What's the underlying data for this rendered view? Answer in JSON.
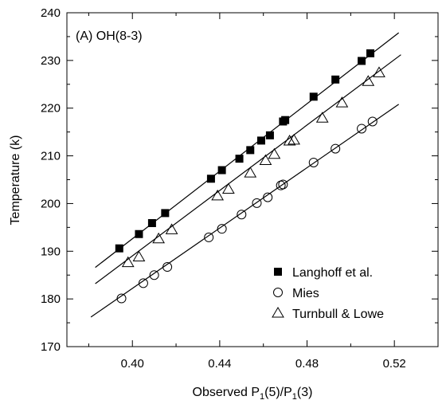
{
  "chart_data": {
    "type": "scatter",
    "annotation": "(A)  OH(8-3)",
    "xlabel_main": "Observed P",
    "xlabel_sub1": "1",
    "xlabel_mid": "(5)/P",
    "xlabel_sub2": "1",
    "xlabel_end": "(3)",
    "ylabel": "Temperature (k)",
    "xlim": [
      0.37,
      0.54
    ],
    "ylim": [
      170,
      240
    ],
    "x_ticks": [
      0.4,
      0.44,
      0.48,
      0.52
    ],
    "x_tick_labels": [
      "0.40",
      "0.44",
      "0.48",
      "0.52"
    ],
    "y_ticks": [
      170,
      180,
      190,
      200,
      210,
      220,
      230,
      240
    ],
    "y_tick_labels": [
      "170",
      "180",
      "190",
      "200",
      "210",
      "220",
      "230",
      "240"
    ],
    "grid": false,
    "legend_position": "bottom-right",
    "series": [
      {
        "name": "Langhoff et al.",
        "marker": "filled-square",
        "color": "#000000",
        "points": [
          [
            0.394,
            190.6
          ],
          [
            0.403,
            193.6
          ],
          [
            0.409,
            195.9
          ],
          [
            0.415,
            198.0
          ],
          [
            0.436,
            205.2
          ],
          [
            0.441,
            207.0
          ],
          [
            0.449,
            209.4
          ],
          [
            0.454,
            211.2
          ],
          [
            0.459,
            213.2
          ],
          [
            0.463,
            214.3
          ],
          [
            0.469,
            217.2
          ],
          [
            0.47,
            217.5
          ],
          [
            0.483,
            222.4
          ],
          [
            0.493,
            226.0
          ],
          [
            0.505,
            229.9
          ],
          [
            0.509,
            231.5
          ]
        ],
        "fit": [
          [
            0.383,
            186.6
          ],
          [
            0.522,
            235.8
          ]
        ]
      },
      {
        "name": "Mies",
        "marker": "open-circle",
        "color": "#000000",
        "points": [
          [
            0.395,
            180.1
          ],
          [
            0.405,
            183.3
          ],
          [
            0.41,
            185.0
          ],
          [
            0.416,
            186.7
          ],
          [
            0.435,
            192.9
          ],
          [
            0.441,
            194.7
          ],
          [
            0.45,
            197.7
          ],
          [
            0.457,
            200.1
          ],
          [
            0.462,
            201.3
          ],
          [
            0.468,
            203.8
          ],
          [
            0.469,
            204.0
          ],
          [
            0.483,
            208.6
          ],
          [
            0.493,
            211.5
          ],
          [
            0.505,
            215.7
          ],
          [
            0.51,
            217.2
          ]
        ],
        "fit": [
          [
            0.381,
            176.2
          ],
          [
            0.522,
            220.8
          ]
        ]
      },
      {
        "name": "Turnbull & Lowe",
        "marker": "open-triangle",
        "color": "#000000",
        "points": [
          [
            0.398,
            187.6
          ],
          [
            0.403,
            188.8
          ],
          [
            0.412,
            192.6
          ],
          [
            0.418,
            194.5
          ],
          [
            0.439,
            201.6
          ],
          [
            0.444,
            203.0
          ],
          [
            0.454,
            206.4
          ],
          [
            0.461,
            209.0
          ],
          [
            0.465,
            210.3
          ],
          [
            0.472,
            213.1
          ],
          [
            0.474,
            213.3
          ],
          [
            0.487,
            217.9
          ],
          [
            0.496,
            221.1
          ],
          [
            0.508,
            225.6
          ],
          [
            0.513,
            227.4
          ]
        ],
        "fit": [
          [
            0.383,
            183.2
          ],
          [
            0.523,
            231.2
          ]
        ]
      }
    ]
  }
}
